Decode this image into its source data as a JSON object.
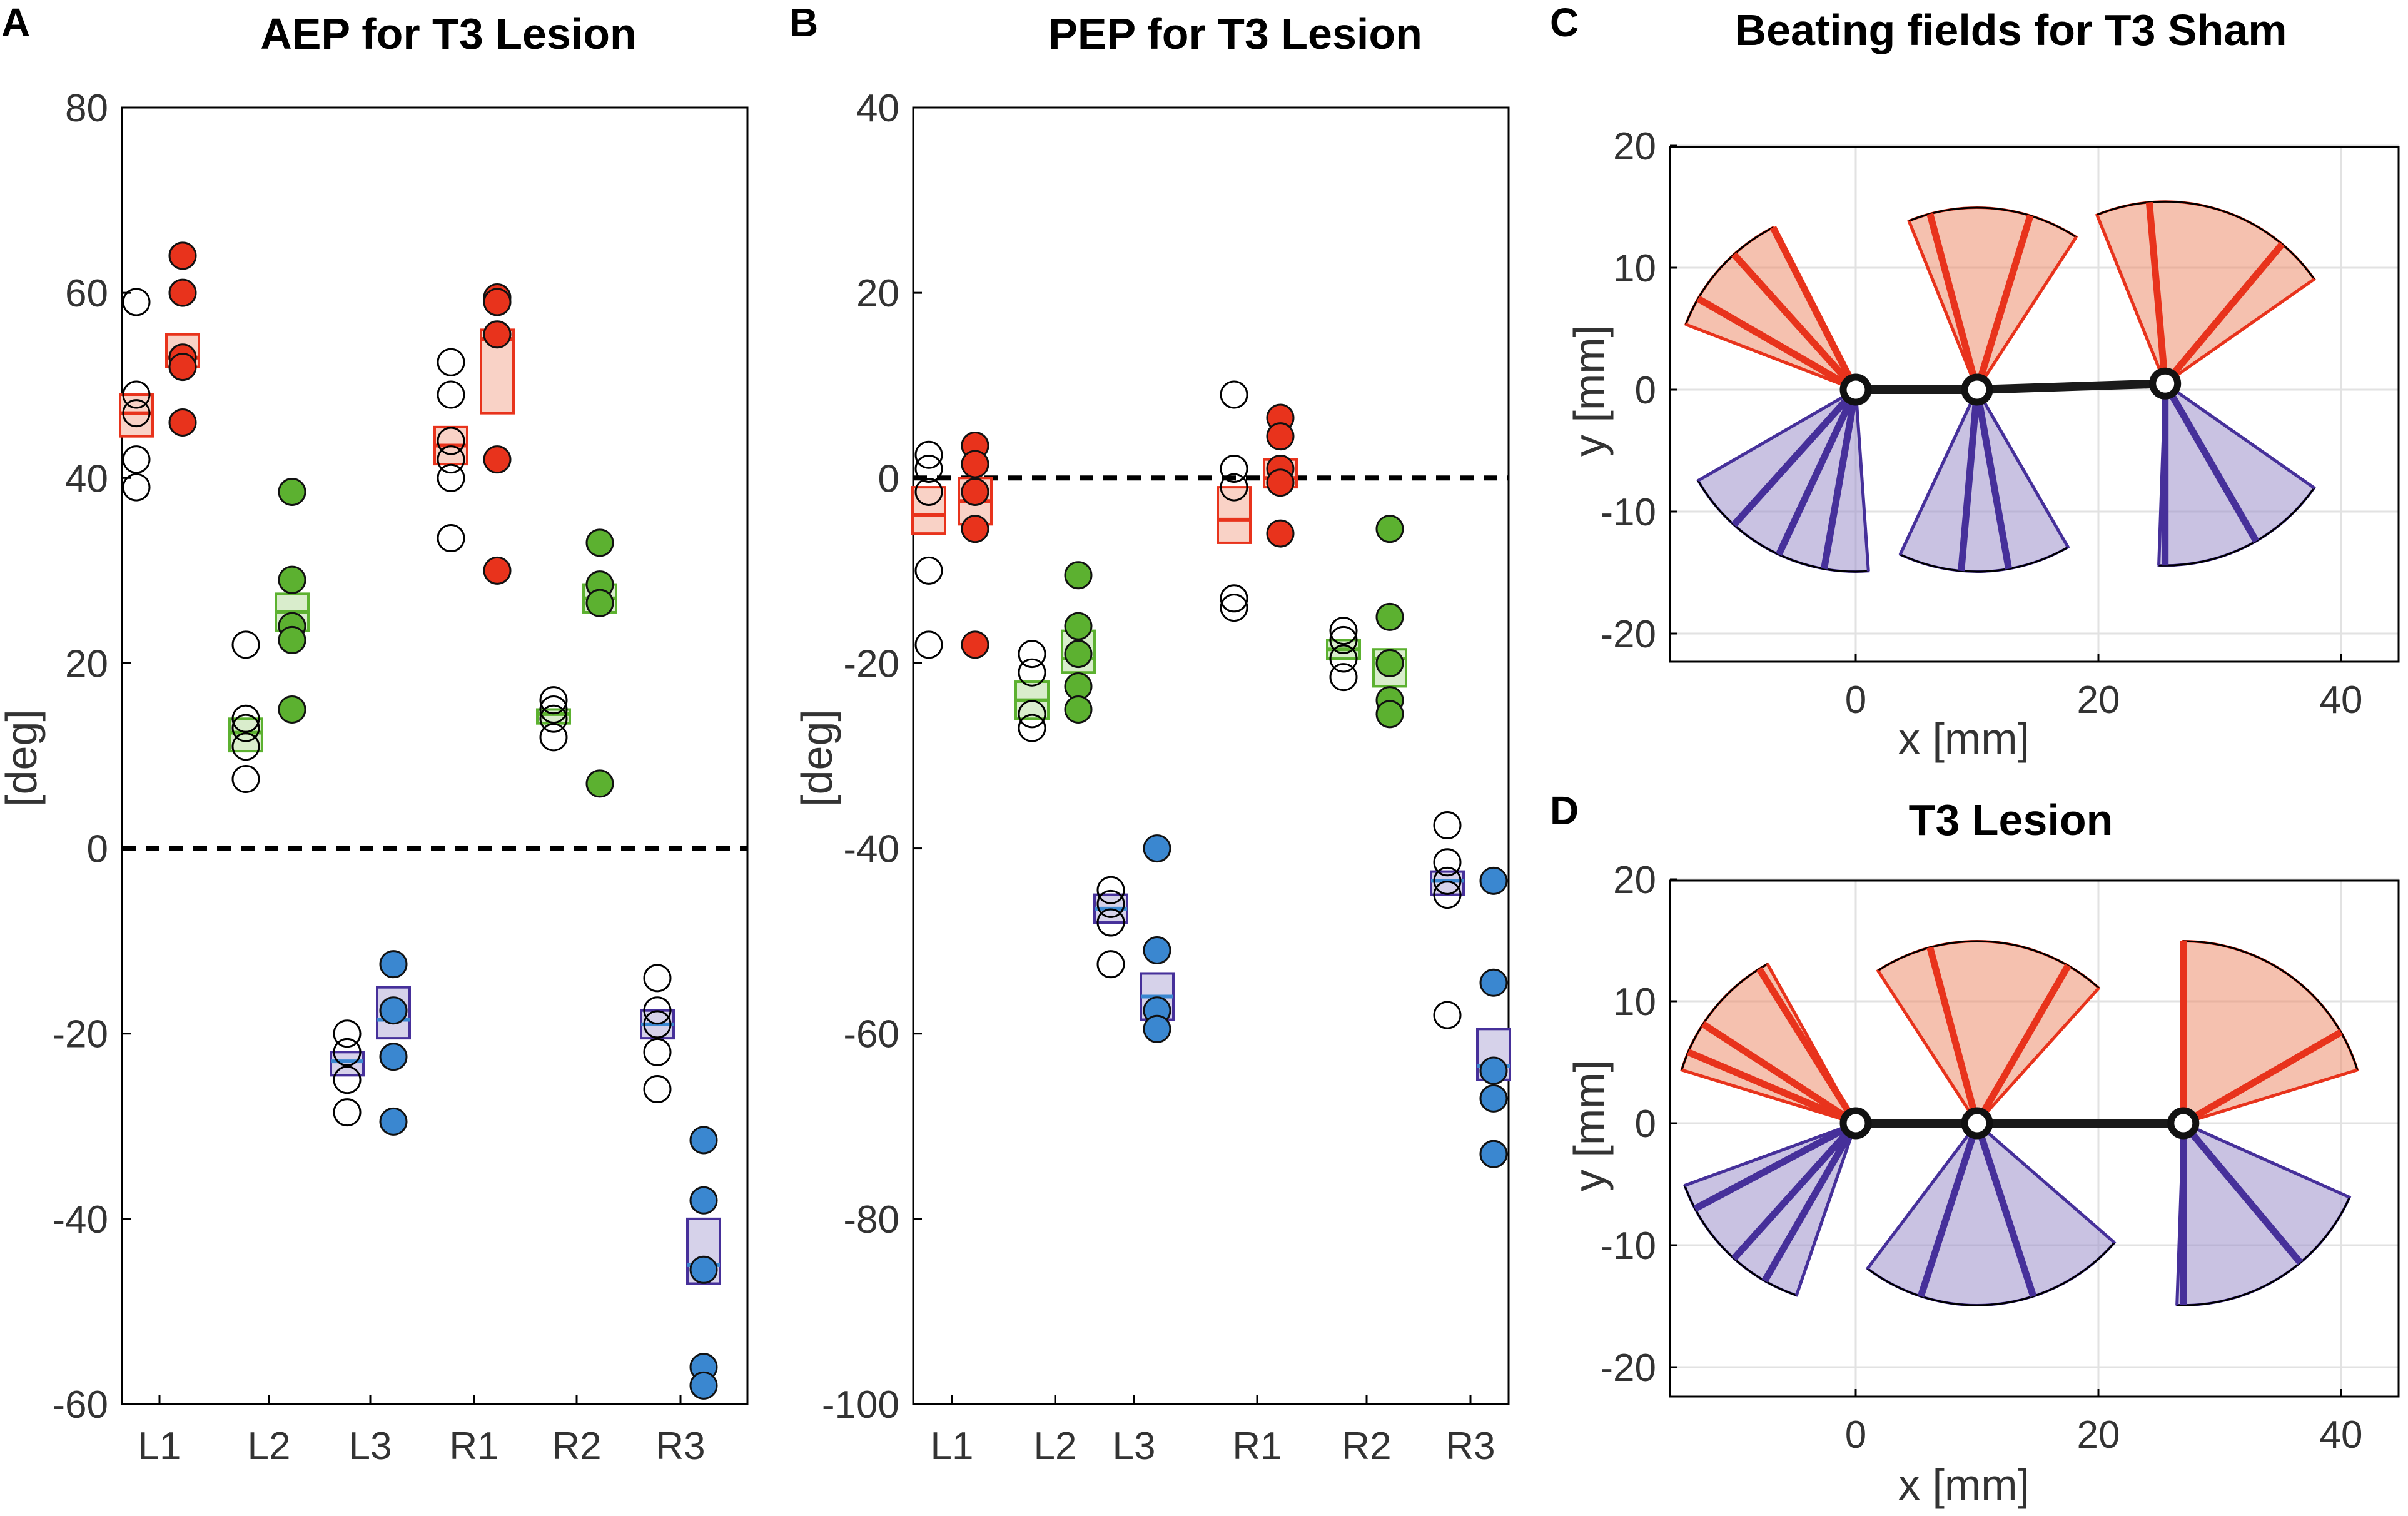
{
  "colors": {
    "red": "#e8331c",
    "red_fill": "#f9d2c6",
    "green": "#5cb130",
    "green_fill": "#d9edcc",
    "blue": "#3a87d0",
    "blue_fill": "#d6d2ea",
    "purple": "#46309a",
    "purple_fill": "#c9c2e4",
    "fan_red": "#ec8e6d",
    "fan_purple": "#9d90cb"
  },
  "chart_data": [
    {
      "id": "A",
      "letter": "A",
      "type": "scatter",
      "title": "AEP for T3 Lesion",
      "xlabel": "",
      "ylabel": "[deg]",
      "categories": [
        "L1",
        "L2",
        "L3",
        "R1",
        "R2",
        "R3"
      ],
      "ylim": [
        -60,
        80
      ],
      "yticks": [
        "80",
        "60",
        "40",
        "20",
        "0",
        "-20",
        "-40",
        "-60"
      ],
      "reference_line": 0,
      "groups": [
        {
          "cat": "L1",
          "side": "sham",
          "color": "red",
          "points": [
            59,
            49,
            47,
            42,
            39
          ],
          "box": [
            44.5,
            49
          ],
          "median": 47
        },
        {
          "cat": "L1",
          "side": "lesion",
          "color": "red",
          "points": [
            64,
            60,
            53,
            52,
            46
          ],
          "box": [
            52,
            55.5
          ],
          "median": 53
        },
        {
          "cat": "L2",
          "side": "sham",
          "color": "green",
          "points": [
            22,
            14,
            13,
            11,
            7.5
          ],
          "box": [
            10.5,
            14
          ],
          "median": 12.5
        },
        {
          "cat": "L2",
          "side": "lesion",
          "color": "green",
          "points": [
            38.5,
            29,
            24,
            22.5,
            15
          ],
          "box": [
            23.5,
            27.5
          ],
          "median": 25.5
        },
        {
          "cat": "L3",
          "side": "sham",
          "color": "purple",
          "points": [
            -20,
            -22,
            -25,
            -28.5
          ],
          "box": [
            -24.5,
            -22
          ],
          "median": -23
        },
        {
          "cat": "L3",
          "side": "lesion",
          "color": "purple",
          "points": [
            -12.5,
            -17.5,
            -22.5,
            -29.5
          ],
          "box": [
            -20.5,
            -15
          ],
          "median": -18.5
        },
        {
          "cat": "R1",
          "side": "sham",
          "color": "red",
          "points": [
            52.5,
            49,
            44,
            42,
            40,
            33.5
          ],
          "box": [
            41.5,
            45.5
          ],
          "median": 43.5
        },
        {
          "cat": "R1",
          "side": "lesion",
          "color": "red",
          "points": [
            59.5,
            59,
            55.5,
            42,
            30
          ],
          "box": [
            47,
            56
          ],
          "median": 55
        },
        {
          "cat": "R2",
          "side": "sham",
          "color": "green",
          "points": [
            16,
            15,
            14,
            12
          ],
          "box": [
            13.5,
            15
          ],
          "median": 14.5
        },
        {
          "cat": "R2",
          "side": "lesion",
          "color": "green",
          "points": [
            33,
            28.5,
            26.5,
            7
          ],
          "box": [
            25.5,
            28.5
          ],
          "median": 27
        },
        {
          "cat": "R3",
          "side": "sham",
          "color": "purple",
          "points": [
            -14,
            -17.5,
            -19,
            -22,
            -26
          ],
          "box": [
            -20.5,
            -17.5
          ],
          "median": -19
        },
        {
          "cat": "R3",
          "side": "lesion",
          "color": "purple",
          "points": [
            -31.5,
            -38,
            -45.5,
            -56,
            -58
          ],
          "box": [
            -47,
            -40
          ],
          "median": -45
        }
      ]
    },
    {
      "id": "B",
      "letter": "B",
      "type": "scatter",
      "title": "PEP for T3 Lesion",
      "xlabel": "",
      "ylabel": "[deg]",
      "categories": [
        "L1",
        "L2",
        "L3",
        "R1",
        "R2",
        "R3"
      ],
      "ylim": [
        -100,
        40
      ],
      "yticks": [
        "40",
        "20",
        "0",
        "-20",
        "-40",
        "-60",
        "-80",
        "-100"
      ],
      "reference_line": 0,
      "groups": [
        {
          "cat": "L1",
          "side": "sham",
          "color": "red",
          "points": [
            2.5,
            1,
            -1.5,
            -10,
            -18
          ],
          "box": [
            -6,
            -1
          ],
          "median": -4
        },
        {
          "cat": "L1",
          "side": "lesion",
          "color": "red",
          "points": [
            3.5,
            1.5,
            -1.5,
            -5.5,
            -18
          ],
          "box": [
            -5,
            0
          ],
          "median": -2.5
        },
        {
          "cat": "L2",
          "side": "sham",
          "color": "green",
          "points": [
            -19,
            -21,
            -25.5,
            -27
          ],
          "box": [
            -26,
            -22
          ],
          "median": -24
        },
        {
          "cat": "L2",
          "side": "lesion",
          "color": "green",
          "points": [
            -10.5,
            -16,
            -19,
            -22.5,
            -25
          ],
          "box": [
            -21,
            -16.5
          ],
          "median": -19.5
        },
        {
          "cat": "L3",
          "side": "sham",
          "color": "purple",
          "points": [
            -44.5,
            -46,
            -48,
            -52.5
          ],
          "box": [
            -48,
            -45
          ],
          "median": -46.5
        },
        {
          "cat": "L3",
          "side": "lesion",
          "color": "purple",
          "points": [
            -40,
            -51,
            -57.5,
            -59.5
          ],
          "box": [
            -58.5,
            -53.5
          ],
          "median": -56
        },
        {
          "cat": "R1",
          "side": "sham",
          "color": "red",
          "points": [
            9,
            1,
            -1,
            -13,
            -14
          ],
          "box": [
            -7,
            -1
          ],
          "median": -4.5
        },
        {
          "cat": "R1",
          "side": "lesion",
          "color": "red",
          "points": [
            6.5,
            4.5,
            1,
            -0.5,
            -6
          ],
          "box": [
            -1,
            2
          ],
          "median": 0
        },
        {
          "cat": "R2",
          "side": "sham",
          "color": "green",
          "points": [
            -16.5,
            -17.5,
            -19.5,
            -21.5
          ],
          "box": [
            -19.5,
            -17.5
          ],
          "median": -18.5
        },
        {
          "cat": "R2",
          "side": "lesion",
          "color": "green",
          "points": [
            -5.5,
            -15,
            -20,
            -24,
            -25.5
          ],
          "box": [
            -22.5,
            -18.5
          ],
          "median": -19.5
        },
        {
          "cat": "R3",
          "side": "sham",
          "color": "purple",
          "points": [
            -37.5,
            -41.5,
            -43.5,
            -45,
            -58
          ],
          "box": [
            -45,
            -42.5
          ],
          "median": -43.5
        },
        {
          "cat": "R3",
          "side": "lesion",
          "color": "purple",
          "points": [
            -43.5,
            -54.5,
            -64,
            -67,
            -73
          ],
          "box": [
            -65,
            -59.5
          ],
          "median": -63.5
        }
      ]
    },
    {
      "id": "C",
      "letter": "C",
      "type": "diagram",
      "title": "Beating fields for T3 Sham",
      "xlabel": "x [mm]",
      "ylabel": "y [mm]",
      "xlim": [
        -15,
        45
      ],
      "ylim": [
        -23,
        23
      ],
      "xticks": [
        0,
        20,
        40
      ],
      "yticks": [
        20,
        10,
        0,
        -10,
        -20
      ],
      "legs": [
        {
          "base": [
            0,
            0
          ],
          "radius": 15,
          "anterior": {
            "min": 117,
            "max": 159,
            "lines": [
              117,
              132,
              150
            ]
          },
          "posterior": {
            "min": 210,
            "max": 274,
            "lines": [
              228,
              245,
              260
            ]
          }
        },
        {
          "base": [
            10,
            0
          ],
          "radius": 15,
          "anterior": {
            "min": 57,
            "max": 112,
            "lines": [
              73,
              105
            ]
          },
          "posterior": {
            "min": 245,
            "max": 300,
            "lines": [
              265,
              280
            ]
          }
        },
        {
          "base": [
            25.5,
            0.5
          ],
          "radius": 15,
          "anterior": {
            "min": 35,
            "max": 112,
            "lines": [
              50,
              95
            ]
          },
          "posterior": {
            "min": 268,
            "max": 325,
            "lines": [
              270,
              300
            ]
          }
        }
      ]
    },
    {
      "id": "D",
      "letter": "D",
      "type": "diagram",
      "title": "T3 Lesion",
      "xlabel": "x [mm]",
      "ylabel": "y [mm]",
      "xlim": [
        -15,
        45
      ],
      "ylim": [
        -23,
        23
      ],
      "xticks": [
        0,
        20,
        40
      ],
      "yticks": [
        20,
        10,
        0,
        -10,
        -20
      ],
      "legs": [
        {
          "base": [
            0,
            0
          ],
          "radius": 15,
          "anterior": {
            "min": 119,
            "max": 163,
            "lines": [
              122,
              147,
              157
            ]
          },
          "posterior": {
            "min": 200,
            "max": 251,
            "lines": [
              208,
              228,
              240
            ]
          }
        },
        {
          "base": [
            10,
            0
          ],
          "radius": 15,
          "anterior": {
            "min": 48,
            "max": 123,
            "lines": [
              60,
              105
            ]
          },
          "posterior": {
            "min": 233,
            "max": 319,
            "lines": [
              252,
              288
            ]
          }
        },
        {
          "base": [
            27,
            0
          ],
          "radius": 15,
          "anterior": {
            "min": 17,
            "max": 90,
            "lines": [
              30,
              90
            ]
          },
          "posterior": {
            "min": 268,
            "max": 336,
            "lines": [
              270,
              310
            ]
          }
        }
      ]
    }
  ]
}
